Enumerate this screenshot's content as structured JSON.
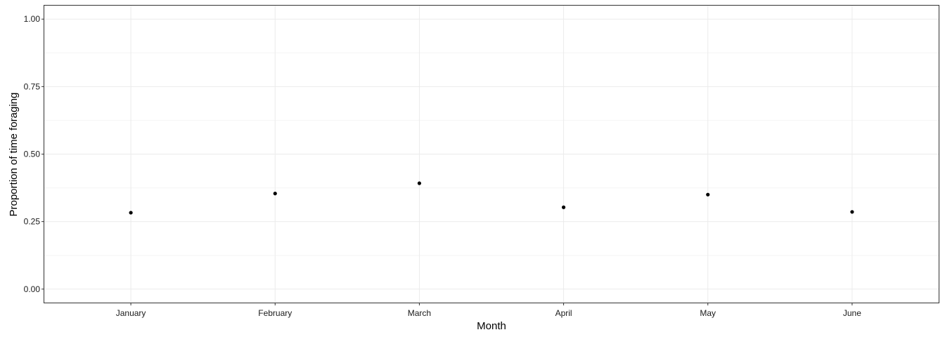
{
  "chart_data": {
    "type": "scatter",
    "title": "",
    "xlabel": "Month",
    "ylabel": "Proportion of time foraging",
    "categories": [
      "January",
      "February",
      "March",
      "April",
      "May",
      "June"
    ],
    "values": [
      0.283,
      0.354,
      0.392,
      0.303,
      0.35,
      0.286
    ],
    "ylim": [
      -0.05,
      1.05
    ],
    "yticks": [
      0,
      0.25,
      0.5,
      0.75,
      1
    ],
    "ytick_labels": [
      "0.00",
      "0.25",
      "0.50",
      "0.75",
      "1.00"
    ],
    "grid": true,
    "legend": "none",
    "colors": {
      "point": "#000000",
      "grid_major": "#ebebeb",
      "grid_minor": "#f5f5f5",
      "panel_border": "#333333"
    }
  }
}
